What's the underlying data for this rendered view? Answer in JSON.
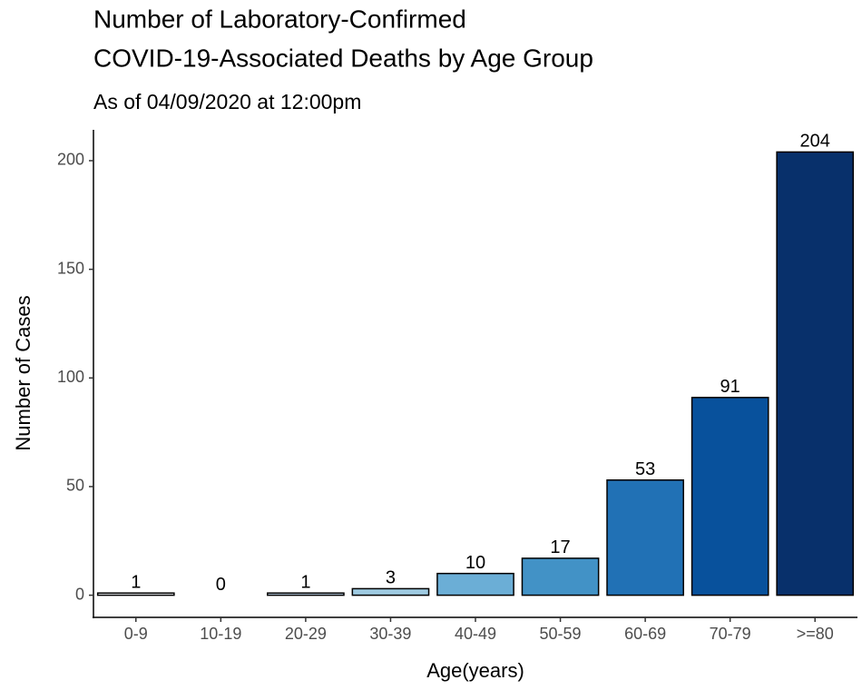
{
  "chart_data": {
    "type": "bar",
    "title": [
      "Number of Laboratory-Confirmed",
      "COVID-19-Associated Deaths by Age Group"
    ],
    "subtitle": "As of 04/09/2020 at 12:00pm",
    "x_label": "Age(years)",
    "y_label": "Number of Cases",
    "categories": [
      "0-9",
      "10-19",
      "20-29",
      "30-39",
      "40-49",
      "50-59",
      "60-69",
      "70-79",
      ">=80"
    ],
    "values": [
      1,
      0,
      1,
      3,
      10,
      17,
      53,
      91,
      204
    ],
    "colors": [
      "#f7fbff",
      "#deebf7",
      "#c6dbef",
      "#9ecae1",
      "#6baed6",
      "#4292c6",
      "#2171b5",
      "#08519c",
      "#08306b"
    ],
    "ylim": [
      -10.2,
      214.2
    ],
    "yticks": [
      0,
      50,
      100,
      150,
      200
    ],
    "grid": false
  }
}
